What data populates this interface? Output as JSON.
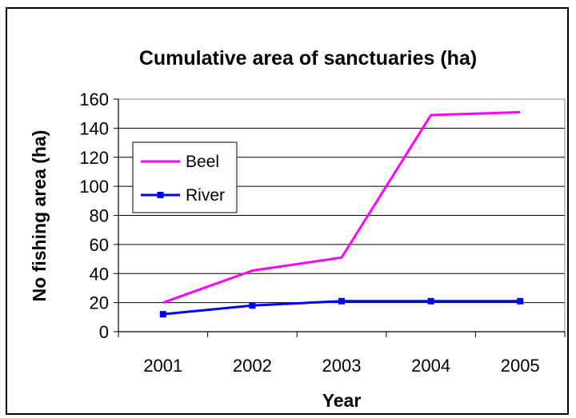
{
  "chart_data": {
    "type": "line",
    "title": "Cumulative area of sanctuaries (ha)",
    "xlabel": "Year",
    "ylabel": "No fishing area (ha)",
    "categories": [
      "2001",
      "2002",
      "2003",
      "2004",
      "2005"
    ],
    "ylim": [
      0,
      160
    ],
    "yticks": [
      0,
      20,
      40,
      60,
      80,
      100,
      120,
      140,
      160
    ],
    "grid": true,
    "legend": "left",
    "series": [
      {
        "name": "Beel",
        "color": "#ff00ff",
        "marker": "none",
        "values": [
          20,
          42,
          51,
          149,
          151
        ]
      },
      {
        "name": "River",
        "color": "#0000ff",
        "marker": "square",
        "values": [
          12,
          18,
          21,
          21,
          21
        ]
      }
    ]
  }
}
